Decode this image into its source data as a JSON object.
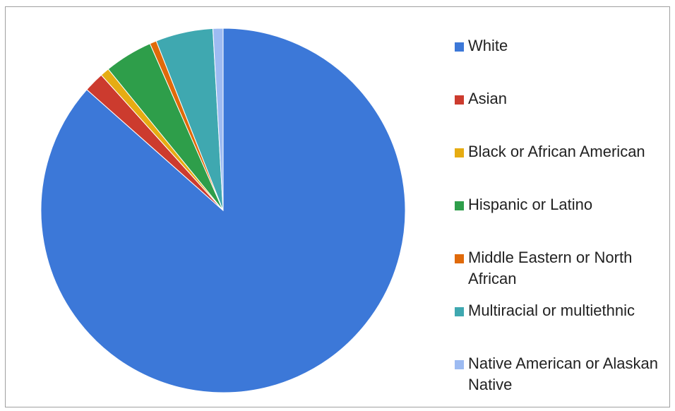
{
  "chart_data": {
    "type": "pie",
    "title": "",
    "start_angle_deg": 0,
    "direction": "clockwise",
    "legend_position": "right",
    "slices": [
      {
        "label": "White",
        "value": 86.8,
        "color": "#3c78d8"
      },
      {
        "label": "Asian",
        "value": 1.8,
        "color": "#cc3b2e"
      },
      {
        "label": "Black or African American",
        "value": 0.8,
        "color": "#e6ac12"
      },
      {
        "label": "Hispanic or Latino",
        "value": 4.3,
        "color": "#2e9e4a"
      },
      {
        "label": "Middle Eastern or North African",
        "value": 0.6,
        "color": "#e06a0a"
      },
      {
        "label": "Multiracial or multiethnic",
        "value": 5.1,
        "color": "#3fa8b0"
      },
      {
        "label": "Native American  or Alaskan Native",
        "value": 0.9,
        "color": "#9dbbf2"
      }
    ]
  }
}
